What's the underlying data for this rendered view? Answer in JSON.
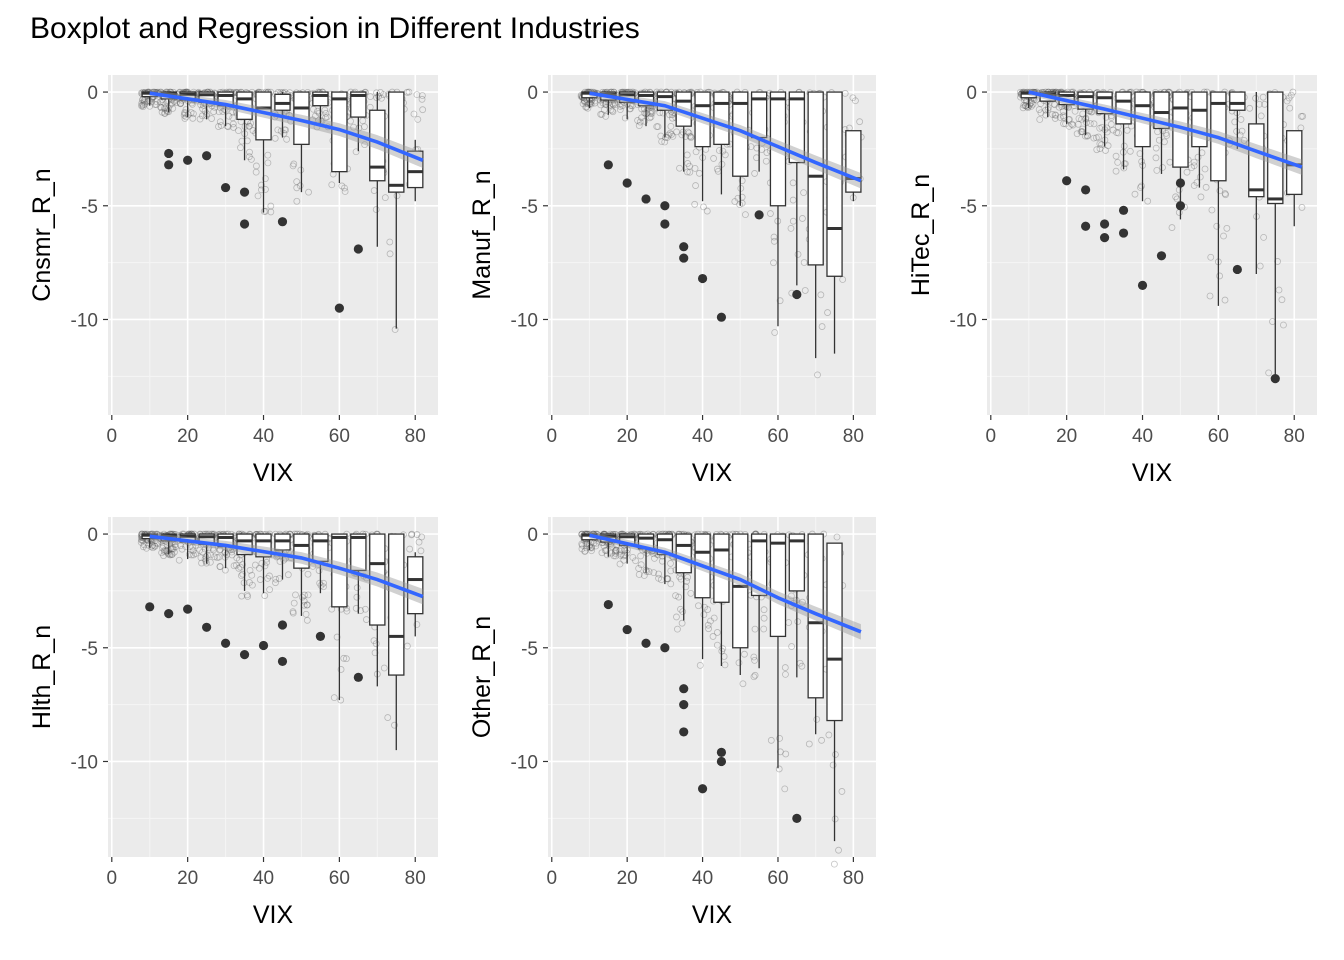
{
  "figure": {
    "title": "Boxplot and Regression in Different Industries"
  },
  "chart_data": [
    {
      "type": "box+regression",
      "ylabel": "Cnsmr_R_n",
      "xlabel": "VIX",
      "xlim": [
        -1,
        86
      ],
      "ylim": [
        -14.2,
        0.75
      ],
      "xticks": [
        0,
        20,
        40,
        60,
        80
      ],
      "yticks": [
        0,
        -5,
        -10
      ],
      "xtick_labels": [
        "0",
        "20",
        "40",
        "60",
        "80"
      ],
      "ytick_labels": [
        "0",
        "-5",
        "-10"
      ],
      "boxes": [
        {
          "x": 10,
          "q1": -0.2,
          "med": -0.05,
          "q3": 0,
          "lo": -0.6,
          "hi": 0
        },
        {
          "x": 15,
          "q1": -0.3,
          "med": -0.08,
          "q3": 0,
          "lo": -0.9,
          "hi": 0
        },
        {
          "x": 20,
          "q1": -0.35,
          "med": -0.1,
          "q3": 0,
          "lo": -1.1,
          "hi": 0
        },
        {
          "x": 25,
          "q1": -0.45,
          "med": -0.12,
          "q3": 0,
          "lo": -1.2,
          "hi": 0
        },
        {
          "x": 30,
          "q1": -0.6,
          "med": -0.15,
          "q3": 0,
          "lo": -1.5,
          "hi": 0
        },
        {
          "x": 35,
          "q1": -1.2,
          "med": -0.3,
          "q3": 0,
          "lo": -3.0,
          "hi": 0
        },
        {
          "x": 40,
          "q1": -2.1,
          "med": -0.7,
          "q3": 0,
          "lo": -5.3,
          "hi": 0
        },
        {
          "x": 45,
          "q1": -0.8,
          "med": -0.5,
          "q3": -0.1,
          "lo": -2.0,
          "hi": 0
        },
        {
          "x": 50,
          "q1": -2.3,
          "med": -0.7,
          "q3": 0,
          "lo": -4.4,
          "hi": 0
        },
        {
          "x": 55,
          "q1": -0.6,
          "med": -0.15,
          "q3": 0,
          "lo": -1.5,
          "hi": 0
        },
        {
          "x": 60,
          "q1": -3.5,
          "med": -0.3,
          "q3": 0,
          "lo": -4.0,
          "hi": 0
        },
        {
          "x": 65,
          "q1": -1.1,
          "med": -0.15,
          "q3": 0,
          "lo": -2.6,
          "hi": 0
        },
        {
          "x": 70,
          "q1": -3.9,
          "med": -3.3,
          "q3": -0.8,
          "lo": -6.8,
          "hi": 0
        },
        {
          "x": 75,
          "q1": -4.4,
          "med": -4.1,
          "q3": 0,
          "lo": -10.4,
          "hi": 0
        },
        {
          "x": 80,
          "q1": -4.2,
          "med": -3.5,
          "q3": -2.6,
          "lo": -4.8,
          "hi": -2.1
        }
      ],
      "outliers": [
        {
          "x": 15,
          "y": -2.7
        },
        {
          "x": 15,
          "y": -3.2
        },
        {
          "x": 20,
          "y": -3.0
        },
        {
          "x": 25,
          "y": -2.8
        },
        {
          "x": 30,
          "y": -4.2
        },
        {
          "x": 35,
          "y": -4.4
        },
        {
          "x": 35,
          "y": -5.8
        },
        {
          "x": 45,
          "y": -5.7
        },
        {
          "x": 60,
          "y": -9.5
        },
        {
          "x": 65,
          "y": -6.9
        }
      ],
      "regression": {
        "x": [
          10,
          30,
          50,
          60,
          70,
          82
        ],
        "y": [
          -0.05,
          -0.55,
          -1.25,
          -1.65,
          -2.2,
          -3.0
        ]
      }
    },
    {
      "type": "box+regression",
      "ylabel": "Manuf_R_n",
      "xlabel": "VIX",
      "xlim": [
        -1,
        86
      ],
      "ylim": [
        -14.2,
        0.75
      ],
      "xticks": [
        0,
        20,
        40,
        60,
        80
      ],
      "yticks": [
        0,
        -5,
        -10
      ],
      "xtick_labels": [
        "0",
        "20",
        "40",
        "60",
        "80"
      ],
      "ytick_labels": [
        "0",
        "-5",
        "-10"
      ],
      "boxes": [
        {
          "x": 10,
          "q1": -0.25,
          "med": -0.05,
          "q3": 0,
          "lo": -0.7,
          "hi": 0
        },
        {
          "x": 15,
          "q1": -0.35,
          "med": -0.1,
          "q3": 0,
          "lo": -1.0,
          "hi": 0
        },
        {
          "x": 20,
          "q1": -0.45,
          "med": -0.12,
          "q3": 0,
          "lo": -1.2,
          "hi": 0
        },
        {
          "x": 25,
          "q1": -0.6,
          "med": -0.15,
          "q3": 0,
          "lo": -1.5,
          "hi": 0
        },
        {
          "x": 30,
          "q1": -0.8,
          "med": -0.2,
          "q3": 0,
          "lo": -2.0,
          "hi": 0
        },
        {
          "x": 35,
          "q1": -1.5,
          "med": -0.4,
          "q3": 0,
          "lo": -3.5,
          "hi": 0
        },
        {
          "x": 40,
          "q1": -2.4,
          "med": -0.6,
          "q3": 0,
          "lo": -4.8,
          "hi": 0
        },
        {
          "x": 45,
          "q1": -2.3,
          "med": -0.5,
          "q3": 0,
          "lo": -4.5,
          "hi": 0
        },
        {
          "x": 50,
          "q1": -3.7,
          "med": -0.5,
          "q3": 0,
          "lo": -5.0,
          "hi": 0
        },
        {
          "x": 55,
          "q1": -2.0,
          "med": -0.3,
          "q3": 0,
          "lo": -3.5,
          "hi": 0
        },
        {
          "x": 60,
          "q1": -5.0,
          "med": -0.3,
          "q3": 0,
          "lo": -10.3,
          "hi": 0
        },
        {
          "x": 65,
          "q1": -3.1,
          "med": -0.3,
          "q3": 0,
          "lo": -8.5,
          "hi": 0
        },
        {
          "x": 70,
          "q1": -7.6,
          "med": -3.7,
          "q3": 0,
          "lo": -11.7,
          "hi": 0
        },
        {
          "x": 75,
          "q1": -8.1,
          "med": -6.0,
          "q3": 0,
          "lo": -11.5,
          "hi": 0
        },
        {
          "x": 80,
          "q1": -4.4,
          "med": -3.8,
          "q3": -1.7,
          "lo": -4.8,
          "hi": -1.7
        }
      ],
      "outliers": [
        {
          "x": 15,
          "y": -3.2
        },
        {
          "x": 20,
          "y": -4.0
        },
        {
          "x": 25,
          "y": -4.7
        },
        {
          "x": 30,
          "y": -5.0
        },
        {
          "x": 30,
          "y": -5.8
        },
        {
          "x": 35,
          "y": -6.8
        },
        {
          "x": 35,
          "y": -7.3
        },
        {
          "x": 40,
          "y": -8.2
        },
        {
          "x": 45,
          "y": -9.9
        },
        {
          "x": 55,
          "y": -5.4
        },
        {
          "x": 65,
          "y": -8.9
        }
      ],
      "regression": {
        "x": [
          10,
          30,
          50,
          60,
          70,
          82
        ],
        "y": [
          -0.05,
          -0.6,
          -1.7,
          -2.4,
          -3.1,
          -3.9
        ]
      }
    },
    {
      "type": "box+regression",
      "ylabel": "HiTec_R_n",
      "xlabel": "VIX",
      "xlim": [
        -1,
        86
      ],
      "ylim": [
        -14.2,
        0.75
      ],
      "xticks": [
        0,
        20,
        40,
        60,
        80
      ],
      "yticks": [
        0,
        -5,
        -10
      ],
      "xtick_labels": [
        "0",
        "20",
        "40",
        "60",
        "80"
      ],
      "ytick_labels": [
        "0",
        "-5",
        "-10"
      ],
      "boxes": [
        {
          "x": 10,
          "q1": -0.25,
          "med": -0.05,
          "q3": 0,
          "lo": -0.7,
          "hi": 0
        },
        {
          "x": 15,
          "q1": -0.4,
          "med": -0.1,
          "q3": 0,
          "lo": -1.1,
          "hi": 0
        },
        {
          "x": 20,
          "q1": -0.55,
          "med": -0.15,
          "q3": 0,
          "lo": -1.4,
          "hi": 0
        },
        {
          "x": 25,
          "q1": -0.75,
          "med": -0.2,
          "q3": 0,
          "lo": -1.9,
          "hi": 0
        },
        {
          "x": 30,
          "q1": -0.95,
          "med": -0.25,
          "q3": 0,
          "lo": -2.4,
          "hi": 0
        },
        {
          "x": 35,
          "q1": -1.4,
          "med": -0.4,
          "q3": 0,
          "lo": -3.4,
          "hi": 0
        },
        {
          "x": 40,
          "q1": -2.4,
          "med": -0.6,
          "q3": 0,
          "lo": -4.8,
          "hi": 0
        },
        {
          "x": 45,
          "q1": -1.6,
          "med": -0.9,
          "q3": 0,
          "lo": -3.6,
          "hi": 0
        },
        {
          "x": 50,
          "q1": -3.3,
          "med": -0.7,
          "q3": 0,
          "lo": -5.6,
          "hi": 0
        },
        {
          "x": 55,
          "q1": -2.4,
          "med": -0.8,
          "q3": 0,
          "lo": -4.2,
          "hi": 0
        },
        {
          "x": 60,
          "q1": -3.9,
          "med": -0.5,
          "q3": 0,
          "lo": -9.4,
          "hi": 0
        },
        {
          "x": 65,
          "q1": -0.8,
          "med": -0.5,
          "q3": 0,
          "lo": -2.5,
          "hi": 0
        },
        {
          "x": 70,
          "q1": -4.6,
          "med": -4.3,
          "q3": -1.4,
          "lo": -8.0,
          "hi": 0
        },
        {
          "x": 75,
          "q1": -4.9,
          "med": -4.7,
          "q3": 0,
          "lo": -12.6,
          "hi": 0
        },
        {
          "x": 80,
          "q1": -4.5,
          "med": -3.2,
          "q3": -1.7,
          "lo": -5.9,
          "hi": -1.7
        }
      ],
      "outliers": [
        {
          "x": 20,
          "y": -3.9
        },
        {
          "x": 25,
          "y": -4.3
        },
        {
          "x": 25,
          "y": -5.9
        },
        {
          "x": 30,
          "y": -5.8
        },
        {
          "x": 30,
          "y": -6.4
        },
        {
          "x": 35,
          "y": -5.2
        },
        {
          "x": 35,
          "y": -6.2
        },
        {
          "x": 40,
          "y": -8.5
        },
        {
          "x": 45,
          "y": -7.2
        },
        {
          "x": 50,
          "y": -4.0
        },
        {
          "x": 50,
          "y": -5.0
        },
        {
          "x": 65,
          "y": -7.8
        },
        {
          "x": 75,
          "y": -12.6
        }
      ],
      "regression": {
        "x": [
          10,
          30,
          50,
          60,
          70,
          82
        ],
        "y": [
          0,
          -0.75,
          -1.55,
          -2.0,
          -2.6,
          -3.3
        ]
      }
    },
    {
      "type": "box+regression",
      "ylabel": "Hlth_R_n",
      "xlabel": "VIX",
      "xlim": [
        -1,
        86
      ],
      "ylim": [
        -14.2,
        0.75
      ],
      "xticks": [
        0,
        20,
        40,
        60,
        80
      ],
      "yticks": [
        0,
        -5,
        -10
      ],
      "xtick_labels": [
        "0",
        "20",
        "40",
        "60",
        "80"
      ],
      "ytick_labels": [
        "0",
        "-5",
        "-10"
      ],
      "boxes": [
        {
          "x": 10,
          "q1": -0.2,
          "med": -0.05,
          "q3": 0,
          "lo": -0.6,
          "hi": 0
        },
        {
          "x": 15,
          "q1": -0.3,
          "med": -0.08,
          "q3": 0,
          "lo": -0.9,
          "hi": 0
        },
        {
          "x": 20,
          "q1": -0.35,
          "med": -0.1,
          "q3": 0,
          "lo": -1.1,
          "hi": 0
        },
        {
          "x": 25,
          "q1": -0.45,
          "med": -0.12,
          "q3": 0,
          "lo": -1.3,
          "hi": 0
        },
        {
          "x": 30,
          "q1": -0.55,
          "med": -0.15,
          "q3": 0,
          "lo": -1.5,
          "hi": 0
        },
        {
          "x": 35,
          "q1": -0.9,
          "med": -0.3,
          "q3": 0,
          "lo": -2.5,
          "hi": 0
        },
        {
          "x": 40,
          "q1": -1.0,
          "med": -0.3,
          "q3": 0,
          "lo": -2.6,
          "hi": 0
        },
        {
          "x": 45,
          "q1": -0.7,
          "med": -0.3,
          "q3": 0,
          "lo": -2.0,
          "hi": 0
        },
        {
          "x": 50,
          "q1": -1.5,
          "med": -0.5,
          "q3": 0,
          "lo": -3.6,
          "hi": 0
        },
        {
          "x": 55,
          "q1": -1.2,
          "med": -0.3,
          "q3": 0,
          "lo": -2.6,
          "hi": 0
        },
        {
          "x": 60,
          "q1": -3.2,
          "med": -0.15,
          "q3": 0,
          "lo": -7.3,
          "hi": 0
        },
        {
          "x": 65,
          "q1": -1.6,
          "med": -0.15,
          "q3": 0,
          "lo": -3.5,
          "hi": 0
        },
        {
          "x": 70,
          "q1": -4.0,
          "med": -1.3,
          "q3": 0,
          "lo": -6.7,
          "hi": 0
        },
        {
          "x": 75,
          "q1": -6.2,
          "med": -4.5,
          "q3": 0,
          "lo": -9.5,
          "hi": 0
        },
        {
          "x": 80,
          "q1": -3.5,
          "med": -2.0,
          "q3": -1.0,
          "lo": -4.5,
          "hi": -0.8
        }
      ],
      "outliers": [
        {
          "x": 10,
          "y": -3.2
        },
        {
          "x": 15,
          "y": -3.5
        },
        {
          "x": 20,
          "y": -3.3
        },
        {
          "x": 25,
          "y": -4.1
        },
        {
          "x": 30,
          "y": -4.8
        },
        {
          "x": 35,
          "y": -5.3
        },
        {
          "x": 40,
          "y": -4.9
        },
        {
          "x": 45,
          "y": -4.0
        },
        {
          "x": 45,
          "y": -5.6
        },
        {
          "x": 55,
          "y": -4.5
        },
        {
          "x": 65,
          "y": -6.3
        }
      ],
      "regression": {
        "x": [
          10,
          30,
          50,
          60,
          70,
          82
        ],
        "y": [
          -0.1,
          -0.5,
          -1.05,
          -1.5,
          -2.0,
          -2.75
        ]
      }
    },
    {
      "type": "box+regression",
      "ylabel": "Other_R_n",
      "xlabel": "VIX",
      "xlim": [
        -1,
        86
      ],
      "ylim": [
        -14.2,
        0.75
      ],
      "xticks": [
        0,
        20,
        40,
        60,
        80
      ],
      "yticks": [
        0,
        -5,
        -10
      ],
      "xtick_labels": [
        "0",
        "20",
        "40",
        "60",
        "80"
      ],
      "ytick_labels": [
        "0",
        "-5",
        "-10"
      ],
      "boxes": [
        {
          "x": 10,
          "q1": -0.25,
          "med": -0.05,
          "q3": 0,
          "lo": -0.7,
          "hi": 0
        },
        {
          "x": 15,
          "q1": -0.35,
          "med": -0.1,
          "q3": 0,
          "lo": -1.0,
          "hi": 0
        },
        {
          "x": 20,
          "q1": -0.5,
          "med": -0.12,
          "q3": 0,
          "lo": -1.3,
          "hi": 0
        },
        {
          "x": 25,
          "q1": -0.65,
          "med": -0.18,
          "q3": 0,
          "lo": -1.7,
          "hi": 0
        },
        {
          "x": 30,
          "q1": -0.9,
          "med": -0.25,
          "q3": 0,
          "lo": -2.2,
          "hi": 0
        },
        {
          "x": 35,
          "q1": -1.7,
          "med": -0.5,
          "q3": 0,
          "lo": -3.8,
          "hi": 0
        },
        {
          "x": 40,
          "q1": -2.8,
          "med": -0.8,
          "q3": 0,
          "lo": -5.5,
          "hi": 0
        },
        {
          "x": 45,
          "q1": -3.0,
          "med": -0.7,
          "q3": 0,
          "lo": -5.8,
          "hi": 0
        },
        {
          "x": 50,
          "q1": -5.0,
          "med": -2.3,
          "q3": 0,
          "lo": -6.2,
          "hi": 0
        },
        {
          "x": 55,
          "q1": -2.7,
          "med": -0.3,
          "q3": 0,
          "lo": -5.9,
          "hi": 0
        },
        {
          "x": 60,
          "q1": -4.5,
          "med": -0.4,
          "q3": 0,
          "lo": -10.3,
          "hi": 0
        },
        {
          "x": 65,
          "q1": -2.5,
          "med": -0.3,
          "q3": 0,
          "lo": -6.3,
          "hi": 0
        },
        {
          "x": 70,
          "q1": -7.2,
          "med": -3.9,
          "q3": 0,
          "lo": -8.8,
          "hi": 0
        },
        {
          "x": 75,
          "q1": -8.2,
          "med": -5.5,
          "q3": -0.4,
          "lo": -13.5,
          "hi": -0.4
        }
      ],
      "outliers": [
        {
          "x": 15,
          "y": -3.1
        },
        {
          "x": 20,
          "y": -4.2
        },
        {
          "x": 25,
          "y": -4.8
        },
        {
          "x": 30,
          "y": -5.0
        },
        {
          "x": 35,
          "y": -6.8
        },
        {
          "x": 35,
          "y": -7.5
        },
        {
          "x": 35,
          "y": -8.7
        },
        {
          "x": 40,
          "y": -11.2
        },
        {
          "x": 45,
          "y": -9.6
        },
        {
          "x": 45,
          "y": -10.0
        },
        {
          "x": 65,
          "y": -12.5
        }
      ],
      "regression": {
        "x": [
          10,
          30,
          50,
          60,
          70,
          82
        ],
        "y": [
          -0.05,
          -0.8,
          -2.0,
          -2.8,
          -3.5,
          -4.3
        ]
      }
    }
  ]
}
